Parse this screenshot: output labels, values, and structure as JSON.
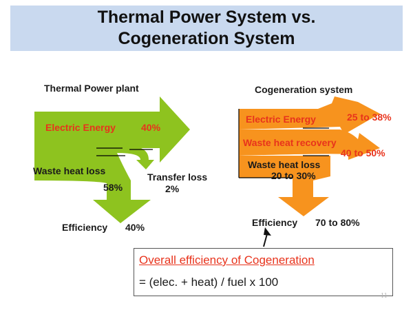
{
  "slide": {
    "title_line1": "Thermal Power System vs.",
    "title_line2": "Cogeneration System",
    "page_number": "11"
  },
  "thermal": {
    "heading": "Thermal Power plant",
    "electric_label": "Electric Energy",
    "electric_value": "40%",
    "waste_label": "Waste heat loss",
    "waste_value": "58%",
    "transfer_label": "Transfer loss",
    "transfer_value": "2%",
    "efficiency_label": "Efficiency",
    "efficiency_value": "40%",
    "color": "#8ec31f"
  },
  "cogen": {
    "heading": "Cogeneration system",
    "electric_label": "Electric Energy",
    "electric_value": "25 to 38%",
    "recovery_label": "Waste heat recovery",
    "recovery_value": "40 to 50%",
    "waste_label": "Waste heat loss",
    "waste_value": "20 to 30%",
    "efficiency_label": "Efficiency",
    "efficiency_value": "70 to 80%",
    "color": "#f7931e"
  },
  "formula": {
    "title": "Overall efficiency of Cogeneration",
    "body": "= (elec. + heat) / fuel x 100"
  }
}
